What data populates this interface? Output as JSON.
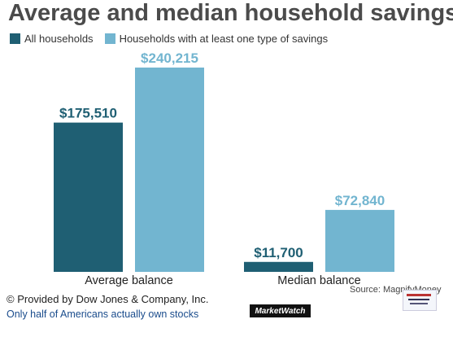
{
  "header": {
    "title": "Average and median household savings"
  },
  "legend": {
    "items": [
      {
        "label": "All households",
        "color": "#1f5f73"
      },
      {
        "label": "Households with at least one type of savings",
        "color": "#72b5d0"
      }
    ]
  },
  "chart_data": {
    "type": "bar",
    "title": "Average and median household savings",
    "categories": [
      "Average balance",
      "Median balance"
    ],
    "series": [
      {
        "name": "All households",
        "values": [
          175510,
          11700
        ],
        "labels": [
          "$175,510",
          "$11,700"
        ],
        "color": "#1f5f73"
      },
      {
        "name": "Households with at least one type of savings",
        "values": [
          240215,
          72840
        ],
        "labels": [
          "$240,215",
          "$72,840"
        ],
        "color": "#72b5d0"
      }
    ],
    "ylim": [
      0,
      240215
    ],
    "grid": false,
    "legend_position": "top-left"
  },
  "footer": {
    "source": "Source: MagnifyMoney",
    "credit": "© Provided by Dow Jones & Company, Inc.",
    "caption": "Only half of Americans actually own stocks",
    "logo": "MarketWatch"
  }
}
